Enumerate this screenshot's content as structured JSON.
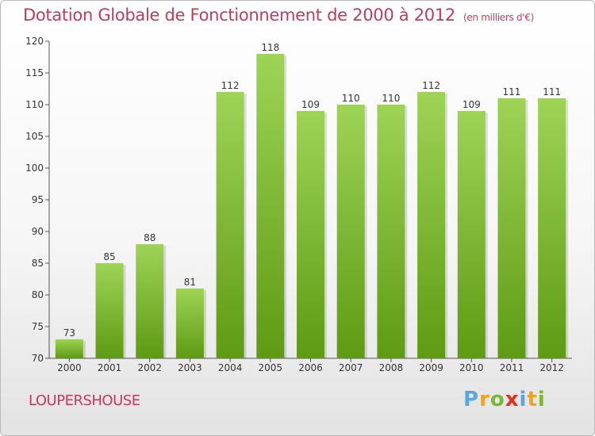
{
  "title": "Dotation Globale de Fonctionnement de 2000 à 2012",
  "unit": "(en milliers d'€)",
  "commune": "LOUPERSHOUSE",
  "logo": {
    "letters": [
      "P",
      "r",
      "o",
      "x",
      "i",
      "t",
      "i"
    ],
    "colors": [
      "#5aa7e0",
      "#f0a21c",
      "#78b833",
      "#e0301e",
      "#5aa7e0",
      "#f0a21c",
      "#78b833"
    ]
  },
  "colors": {
    "title": "#c23a5c",
    "bar_top": "#9ed456",
    "bar_bottom": "#5e9a13"
  },
  "chart_data": {
    "type": "bar",
    "categories": [
      "2000",
      "2001",
      "2002",
      "2003",
      "2004",
      "2005",
      "2006",
      "2007",
      "2008",
      "2009",
      "2010",
      "2011",
      "2012"
    ],
    "values": [
      73,
      85,
      88,
      81,
      112,
      118,
      109,
      110,
      110,
      112,
      109,
      111,
      111
    ],
    "ylim": [
      70,
      120
    ],
    "yticks": [
      70,
      75,
      80,
      85,
      90,
      95,
      100,
      105,
      110,
      115,
      120
    ],
    "grid": false,
    "data_labels": true
  }
}
